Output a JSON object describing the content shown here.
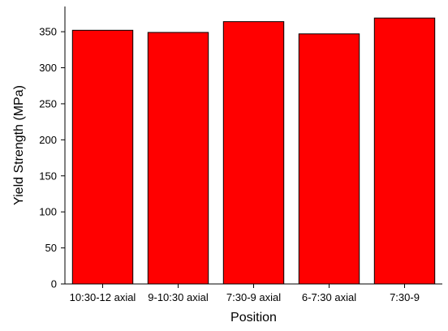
{
  "chart_data": {
    "type": "bar",
    "categories": [
      "10:30-12 axial",
      "9-10:30 axial",
      "7:30-9 axial",
      "6-7:30 axial",
      "7:30-9"
    ],
    "values": [
      352,
      349,
      364,
      347,
      369
    ],
    "xlabel": "Position",
    "ylabel": "Yield Strength (MPa)",
    "ylim": [
      0,
      385
    ],
    "yticks": [
      0,
      50,
      100,
      150,
      200,
      250,
      300,
      350
    ],
    "bar_color": "#ff0000",
    "grid": false,
    "legend": false
  }
}
